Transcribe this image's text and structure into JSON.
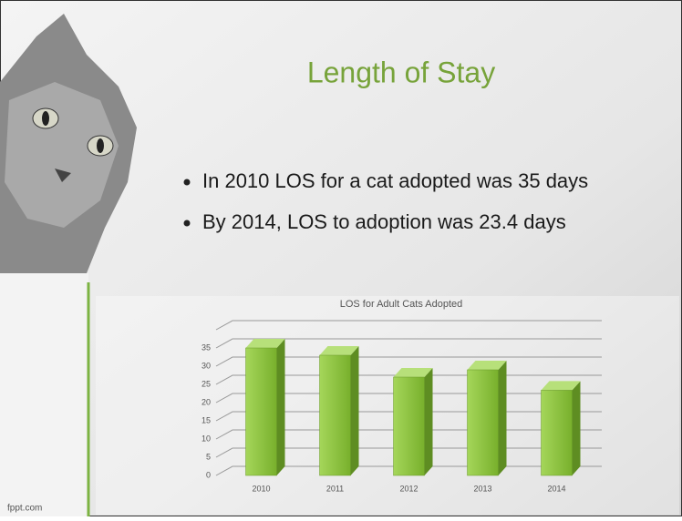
{
  "slide": {
    "title": "Length of Stay",
    "bullets": [
      "In 2010 LOS for a cat adopted was 35 days",
      "By 2014, LOS to adoption was 23.4 days"
    ],
    "footer": "fppt.com"
  },
  "chart_data": {
    "type": "bar",
    "title": "LOS for Adult Cats Adopted",
    "categories": [
      "2010",
      "2011",
      "2012",
      "2013",
      "2014"
    ],
    "values": [
      35,
      33,
      27,
      29,
      23.4
    ],
    "color": "#8cc63f",
    "ylim": [
      0,
      40
    ],
    "yticks": [
      0,
      5,
      10,
      15,
      20,
      25,
      30,
      35
    ],
    "grid": true
  }
}
